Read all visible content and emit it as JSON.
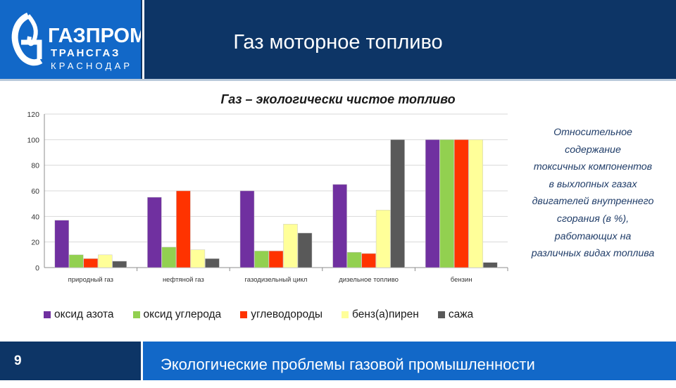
{
  "header": {
    "title": "Газ моторное топливо",
    "logo": {
      "word1": "ГАЗПРОМ",
      "word2": "ТРАНСГАЗ",
      "word3": "КРАСНОДАР"
    }
  },
  "chart_data": {
    "type": "bar",
    "title": "Газ – экологически чистое топливо",
    "xlabel": "",
    "ylabel": "",
    "ylim": [
      0,
      120
    ],
    "yticks": [
      0,
      20,
      40,
      60,
      80,
      100,
      120
    ],
    "grid": true,
    "legend_position": "bottom",
    "categories": [
      "природный газ",
      "нефтяной газ",
      "газодизельный цикл",
      "дизельное топливо",
      "бензин"
    ],
    "series": [
      {
        "name": "оксид азота",
        "color": "#7030a0",
        "values": [
          37,
          55,
          60,
          65,
          100
        ]
      },
      {
        "name": "оксид углерода",
        "color": "#92d050",
        "values": [
          10,
          16,
          13,
          12,
          100
        ]
      },
      {
        "name": "углеводороды",
        "color": "#ff3300",
        "values": [
          7,
          60,
          13,
          11,
          100
        ]
      },
      {
        "name": "бенз(а)пирен",
        "color": "#ffff99",
        "values": [
          10,
          14,
          34,
          45,
          100
        ]
      },
      {
        "name": "сажа",
        "color": "#595959",
        "values": [
          5,
          7,
          27,
          100,
          4
        ]
      }
    ]
  },
  "side_caption": [
    "Относительное",
    "содержание",
    "токсичных компонентов",
    "в  выхлопных газах",
    "двигателей внутреннего",
    "сгорания (в %),",
    "работающих на",
    "различных видах топлива"
  ],
  "footer": {
    "page_number": "9",
    "text": "Экологические проблемы газовой промышленности"
  },
  "colors": {
    "dark_blue": "#0d3566",
    "brand_blue": "#1268c8",
    "caption_text": "#1f3c68"
  }
}
